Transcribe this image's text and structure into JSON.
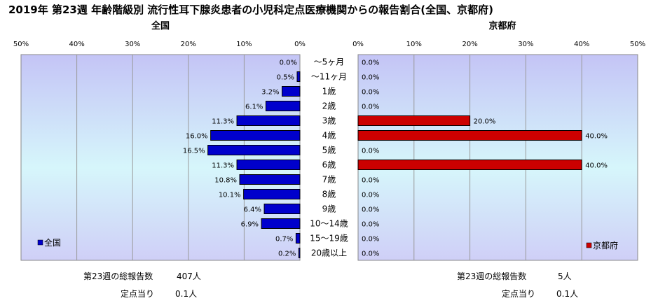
{
  "chart_data": {
    "type": "bar",
    "title": "2019年 第23週 年齢階級別 流行性耳下腺炎患者の小児科定点医療機関からの報告割合(全国、京都府)",
    "categories": [
      "～5ヶ月",
      "～11ヶ月",
      "1歳",
      "2歳",
      "3歳",
      "4歳",
      "5歳",
      "6歳",
      "7歳",
      "8歳",
      "9歳",
      "10～14歳",
      "15～19歳",
      "20歳以上"
    ],
    "tick_labels": [
      "0%",
      "10%",
      "20%",
      "30%",
      "40%",
      "50%"
    ],
    "xlim": [
      0,
      50
    ],
    "unit": "%",
    "series": [
      {
        "name": "全国",
        "panel_title": "全国",
        "color": "#0000CC",
        "values": [
          0.0,
          0.5,
          3.2,
          6.1,
          11.3,
          16.0,
          16.5,
          11.3,
          10.8,
          10.1,
          6.4,
          6.9,
          0.7,
          0.2
        ],
        "value_labels": [
          "0.0%",
          "0.5%",
          "3.2%",
          "6.1%",
          "11.3%",
          "16.0%",
          "16.5%",
          "11.3%",
          "10.8%",
          "10.1%",
          "6.4%",
          "6.9%",
          "0.7%",
          "0.2%"
        ],
        "legend": "全国",
        "footer": {
          "total_label": "第23週の総報告数",
          "total_value": "407人",
          "per_label": "定点当り",
          "per_value": "0.1人"
        }
      },
      {
        "name": "京都府",
        "panel_title": "京都府",
        "color": "#CC0000",
        "values": [
          0.0,
          0.0,
          0.0,
          0.0,
          20.0,
          40.0,
          0.0,
          40.0,
          0.0,
          0.0,
          0.0,
          0.0,
          0.0,
          0.0
        ],
        "value_labels": [
          "0.0%",
          "0.0%",
          "0.0%",
          "0.0%",
          "20.0%",
          "40.0%",
          "0.0%",
          "40.0%",
          "0.0%",
          "0.0%",
          "0.0%",
          "0.0%",
          "0.0%",
          "0.0%"
        ],
        "legend": "京都府",
        "footer": {
          "total_label": "第23週の総報告数",
          "total_value": "5人",
          "per_label": "定点当り",
          "per_value": "0.1人"
        }
      }
    ]
  }
}
